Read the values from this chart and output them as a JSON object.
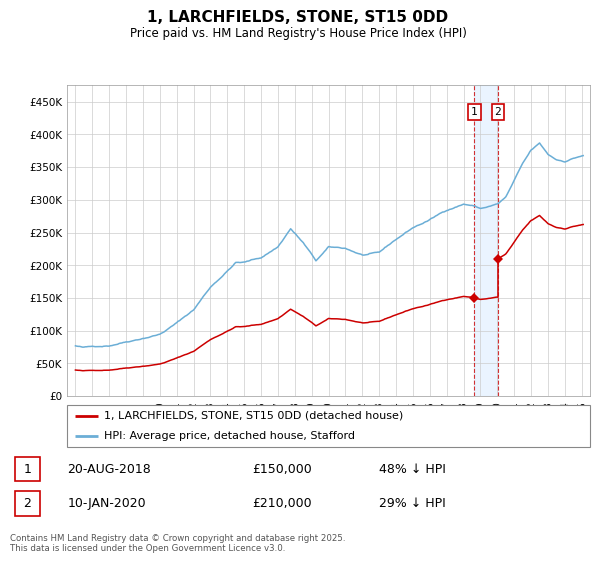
{
  "title": "1, LARCHFIELDS, STONE, ST15 0DD",
  "subtitle": "Price paid vs. HM Land Registry's House Price Index (HPI)",
  "footer": "Contains HM Land Registry data © Crown copyright and database right 2025.\nThis data is licensed under the Open Government Licence v3.0.",
  "legend_line1": "1, LARCHFIELDS, STONE, ST15 0DD (detached house)",
  "legend_line2": "HPI: Average price, detached house, Stafford",
  "annotation1_date": "20-AUG-2018",
  "annotation1_price": "£150,000",
  "annotation1_note": "48% ↓ HPI",
  "annotation2_date": "10-JAN-2020",
  "annotation2_price": "£210,000",
  "annotation2_note": "29% ↓ HPI",
  "sale1_x": 2018.637,
  "sale1_y": 150000,
  "sale2_x": 2020.027,
  "sale2_y": 210000,
  "hpi_color": "#6baed6",
  "price_color": "#cc0000",
  "shade_color": "#ddeeff",
  "ylim": [
    0,
    475000
  ],
  "xlim": [
    1994.5,
    2025.5
  ],
  "yticks": [
    0,
    50000,
    100000,
    150000,
    200000,
    250000,
    300000,
    350000,
    400000,
    450000
  ],
  "ytick_labels": [
    "£0",
    "£50K",
    "£100K",
    "£150K",
    "£200K",
    "£250K",
    "£300K",
    "£350K",
    "£400K",
    "£450K"
  ],
  "xticks": [
    1995,
    1996,
    1997,
    1998,
    1999,
    2000,
    2001,
    2002,
    2003,
    2004,
    2005,
    2006,
    2007,
    2008,
    2009,
    2010,
    2011,
    2012,
    2013,
    2014,
    2015,
    2016,
    2017,
    2018,
    2019,
    2020,
    2021,
    2022,
    2023,
    2024,
    2025
  ]
}
